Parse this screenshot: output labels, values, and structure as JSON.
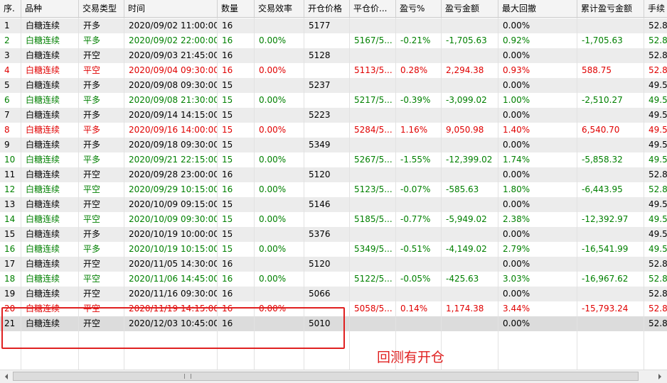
{
  "table": {
    "columns": [
      "序.",
      "品种",
      "交易类型",
      "时间",
      "数量",
      "交易效率",
      "开仓价格",
      "平仓价...",
      "盈亏%",
      "盈亏金额",
      "最大回撤",
      "累计盈亏金额",
      "手续"
    ],
    "rows": [
      {
        "color": "#000000",
        "cells": [
          "1",
          "白糖连续",
          "开多",
          "2020/09/02 11:00:00",
          "16",
          null,
          "5177",
          null,
          null,
          null,
          "0.00%",
          null,
          "52.8"
        ]
      },
      {
        "color": "#008000",
        "cells": [
          "2",
          "白糖连续",
          "平多",
          "2020/09/02 22:00:00",
          "16",
          "0.00%",
          null,
          "5167/5...",
          "-0.21%",
          "-1,705.63",
          "0.92%",
          "-1,705.63",
          "52.8"
        ]
      },
      {
        "color": "#000000",
        "cells": [
          "3",
          "白糖连续",
          "开空",
          "2020/09/03 21:45:00",
          "16",
          null,
          "5128",
          null,
          null,
          null,
          "0.00%",
          null,
          "52.8"
        ]
      },
      {
        "color": "#e00000",
        "cells": [
          "4",
          "白糖连续",
          "平空",
          "2020/09/04 09:30:00",
          "16",
          "0.00%",
          null,
          "5113/5...",
          "0.28%",
          "2,294.38",
          "0.93%",
          "588.75",
          "52.8"
        ]
      },
      {
        "color": "#000000",
        "cells": [
          "5",
          "白糖连续",
          "开多",
          "2020/09/08 09:30:00",
          "15",
          null,
          "5237",
          null,
          null,
          null,
          "0.00%",
          null,
          "49.5"
        ]
      },
      {
        "color": "#008000",
        "cells": [
          "6",
          "白糖连续",
          "平多",
          "2020/09/08 21:30:00",
          "15",
          "0.00%",
          null,
          "5217/5...",
          "-0.39%",
          "-3,099.02",
          "1.00%",
          "-2,510.27",
          "49.5"
        ]
      },
      {
        "color": "#000000",
        "cells": [
          "7",
          "白糖连续",
          "开多",
          "2020/09/14 14:15:00",
          "15",
          null,
          "5223",
          null,
          null,
          null,
          "0.00%",
          null,
          "49.5"
        ]
      },
      {
        "color": "#e00000",
        "cells": [
          "8",
          "白糖连续",
          "平多",
          "2020/09/16 14:00:00",
          "15",
          "0.00%",
          null,
          "5284/5...",
          "1.16%",
          "9,050.98",
          "1.40%",
          "6,540.70",
          "49.5"
        ]
      },
      {
        "color": "#000000",
        "cells": [
          "9",
          "白糖连续",
          "开多",
          "2020/09/18 09:30:00",
          "15",
          null,
          "5349",
          null,
          null,
          null,
          "0.00%",
          null,
          "49.5"
        ]
      },
      {
        "color": "#008000",
        "cells": [
          "10",
          "白糖连续",
          "平多",
          "2020/09/21 22:15:00",
          "15",
          "0.00%",
          null,
          "5267/5...",
          "-1.55%",
          "-12,399.02",
          "1.74%",
          "-5,858.32",
          "49.5"
        ]
      },
      {
        "color": "#000000",
        "cells": [
          "11",
          "白糖连续",
          "开空",
          "2020/09/28 23:00:00",
          "16",
          null,
          "5120",
          null,
          null,
          null,
          "0.00%",
          null,
          "52.8"
        ]
      },
      {
        "color": "#008000",
        "cells": [
          "12",
          "白糖连续",
          "平空",
          "2020/09/29 10:15:00",
          "16",
          "0.00%",
          null,
          "5123/5...",
          "-0.07%",
          "-585.63",
          "1.80%",
          "-6,443.95",
          "52.8"
        ]
      },
      {
        "color": "#000000",
        "cells": [
          "13",
          "白糖连续",
          "开空",
          "2020/10/09 09:15:00",
          "15",
          null,
          "5146",
          null,
          null,
          null,
          "0.00%",
          null,
          "49.5"
        ]
      },
      {
        "color": "#008000",
        "cells": [
          "14",
          "白糖连续",
          "平空",
          "2020/10/09 09:30:00",
          "15",
          "0.00%",
          null,
          "5185/5...",
          "-0.77%",
          "-5,949.02",
          "2.38%",
          "-12,392.97",
          "49.5"
        ]
      },
      {
        "color": "#000000",
        "cells": [
          "15",
          "白糖连续",
          "开多",
          "2020/10/19 10:00:00",
          "15",
          null,
          "5376",
          null,
          null,
          null,
          "0.00%",
          null,
          "49.5"
        ]
      },
      {
        "color": "#008000",
        "cells": [
          "16",
          "白糖连续",
          "平多",
          "2020/10/19 10:15:00",
          "15",
          "0.00%",
          null,
          "5349/5...",
          "-0.51%",
          "-4,149.02",
          "2.79%",
          "-16,541.99",
          "49.5"
        ]
      },
      {
        "color": "#000000",
        "cells": [
          "17",
          "白糖连续",
          "开空",
          "2020/11/05 14:30:00",
          "16",
          null,
          "5120",
          null,
          null,
          null,
          "0.00%",
          null,
          "52.8"
        ]
      },
      {
        "color": "#008000",
        "cells": [
          "18",
          "白糖连续",
          "平空",
          "2020/11/06 14:45:00",
          "16",
          "0.00%",
          null,
          "5122/5...",
          "-0.05%",
          "-425.63",
          "3.03%",
          "-16,967.62",
          "52.8"
        ]
      },
      {
        "color": "#000000",
        "cells": [
          "19",
          "白糖连续",
          "开空",
          "2020/11/16 09:30:00",
          "16",
          null,
          "5066",
          null,
          null,
          null,
          "0.00%",
          null,
          "52.8"
        ]
      },
      {
        "color": "#e00000",
        "cells": [
          "20",
          "白糖连续",
          "平空",
          "2020/11/19 14:15:00",
          "16",
          "0.00%",
          null,
          "5058/5...",
          "0.14%",
          "1,174.38",
          "3.44%",
          "-15,793.24",
          "52.8"
        ]
      },
      {
        "color": "#000000",
        "cells": [
          "21",
          "白糖连续",
          "开空",
          "2020/12/03 10:45:00",
          "16",
          null,
          "5010",
          null,
          null,
          null,
          "0.00%",
          null,
          "52.8"
        ]
      }
    ]
  },
  "annotation": "回测有开仓"
}
